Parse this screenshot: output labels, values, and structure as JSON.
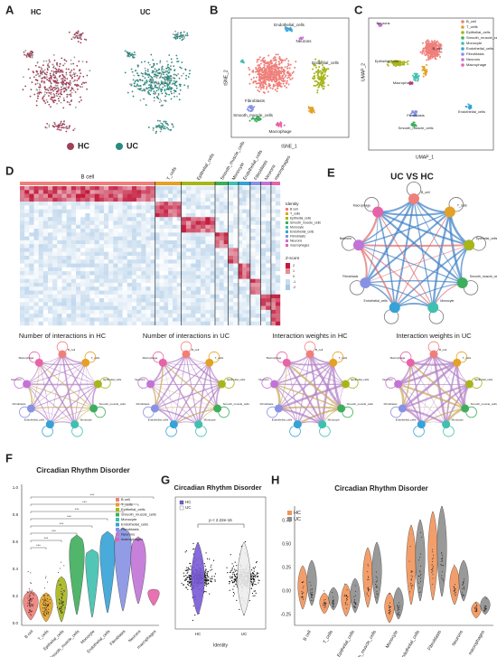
{
  "letters": [
    "A",
    "B",
    "C",
    "D",
    "E",
    "F",
    "G",
    "H"
  ],
  "colors": [
    "#ef7f7a",
    "#e3a126",
    "#a7b51c",
    "#3fae5c",
    "#3fc0b0",
    "#35a3d6",
    "#8792e4",
    "#c274d6",
    "#e763a8"
  ],
  "a": {
    "groups": [
      "HC",
      "UC"
    ],
    "legend": [
      "HC",
      "UC"
    ]
  },
  "b": {
    "x_label": "tSNE_1",
    "y_label": "tSNE_2",
    "clusters": [
      "Endothelial_cells",
      "Neurons",
      "Epithelial_cells",
      "Fibroblasts",
      "Smooth_muscle_cells",
      "Macrophage"
    ]
  },
  "c": {
    "x_label": "UMAP_1",
    "y_label": "UMAP_2",
    "legend": [
      "B_cell",
      "T_cells",
      "Epithelial_cells",
      "Smooth_muscle_cells",
      "Monocyte",
      "Endothelial_cells",
      "Fibroblasts",
      "Neurons",
      "Macrophage"
    ],
    "clusters": [
      "Neurons",
      "B_cell",
      "Epithelial_cells",
      "Macrophage",
      "Fibroblasts",
      "Smooth_muscle_cells",
      "Endothelial_cells"
    ]
  },
  "d": {
    "columns": [
      "B cell",
      "T_cells",
      "Epithelial_cells",
      "Smooth_muscle_cells",
      "Monocyte",
      "Endothelial_cells",
      "Fibroblasts",
      "Neurons",
      "macrophages"
    ],
    "legend_title": "Identity",
    "scale_title": "Z-score",
    "scale_ticks": [
      "2",
      "1",
      "0",
      "-1",
      "-2"
    ]
  },
  "e": {
    "title": "UC VS HC"
  },
  "small": [
    "Number of interactions in HC",
    "Number of interactions in UC",
    "Interaction weights in HC",
    "Interaction weights in UC"
  ],
  "f": {
    "title": "Circadian Rhythm Disorder",
    "categories": [
      "B cell",
      "T_cells",
      "Epithelial_cells",
      "Smooth_muscle_cells",
      "Monocyte",
      "Endothelial_cells",
      "Fibroblasts",
      "Neurons",
      "macrophages"
    ],
    "yticks": [
      "1.0",
      "0.8",
      "0.6",
      "0.4",
      "0.2",
      "0.0"
    ],
    "significance": [
      "***",
      "***",
      "***",
      "***",
      "***",
      "***",
      "***",
      "***"
    ]
  },
  "g": {
    "title": "Circadian Rhythm Disorder",
    "legend": [
      "HC",
      "UC"
    ],
    "categories": [
      "HC",
      "UC"
    ],
    "x_label": "Identity",
    "annotation": "p < 2.22e-16"
  },
  "h": {
    "title": "Circadian Rhythm Disorder",
    "legend": [
      "HC",
      "UC"
    ],
    "yticks": [
      "0.75",
      "0.50",
      "0.25",
      "0.00",
      "-0.25"
    ],
    "categories": [
      "B cell",
      "T_cells",
      "Epithelial_cells",
      "Smooth_muscle_cells",
      "Monocyte",
      "Endothelial_cells",
      "Fibroblasts",
      "Neurons",
      "macrophages"
    ]
  }
}
